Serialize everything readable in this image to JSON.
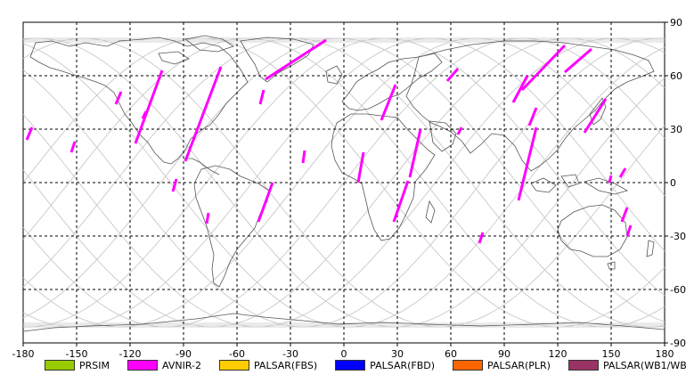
{
  "map": {
    "x_axis": {
      "range": [
        -180,
        180
      ],
      "ticks": [
        -180,
        -150,
        -120,
        -90,
        -60,
        -30,
        0,
        30,
        60,
        90,
        120,
        150,
        180
      ],
      "labels": [
        "-180",
        "-150",
        "-120",
        "-90",
        "-60",
        "-30",
        "0",
        "30",
        "60",
        "90",
        "120",
        "150",
        "180"
      ]
    },
    "y_axis": {
      "range": [
        -90,
        90
      ],
      "ticks": [
        90,
        60,
        30,
        0,
        -30,
        -60,
        -90
      ],
      "labels": [
        "90",
        "60",
        "30",
        "0",
        "-30",
        "-60",
        "-90"
      ]
    },
    "grid": "dashed",
    "orbit_color": "#c8c8c8",
    "coastline_color": "#555555"
  },
  "legend": [
    {
      "label": "PRSIM",
      "color": "#99cc00"
    },
    {
      "label": "AVNIR-2",
      "color": "#ff00ff"
    },
    {
      "label": "PALSAR(FBS)",
      "color": "#ffcc00"
    },
    {
      "label": "PALSAR(FBD)",
      "color": "#0000ff"
    },
    {
      "label": "PALSAR(PLR)",
      "color": "#ff6600"
    },
    {
      "label": "PALSAR(WB1/WB2)",
      "color": "#993366"
    }
  ],
  "avnir2_strips": [
    [
      [
        -178,
        24
      ],
      [
        -175,
        31
      ]
    ],
    [
      [
        -153,
        17
      ],
      [
        -151,
        23
      ]
    ],
    [
      [
        -128,
        44
      ],
      [
        -125,
        51
      ]
    ],
    [
      [
        -113,
        36
      ],
      [
        -111,
        40
      ]
    ],
    [
      [
        -117,
        22
      ],
      [
        -102,
        63
      ]
    ],
    [
      [
        -89,
        12
      ],
      [
        -69,
        65
      ]
    ],
    [
      [
        -47,
        44
      ],
      [
        -45,
        52
      ]
    ],
    [
      [
        -44,
        58
      ],
      [
        -10,
        80
      ]
    ],
    [
      [
        -96,
        -5
      ],
      [
        -94,
        2
      ]
    ],
    [
      [
        -77,
        -23
      ],
      [
        -76,
        -17
      ]
    ],
    [
      [
        -48,
        -22
      ],
      [
        -40,
        0
      ]
    ],
    [
      [
        -23,
        11
      ],
      [
        -22,
        18
      ]
    ],
    [
      [
        8,
        0
      ],
      [
        11,
        17
      ]
    ],
    [
      [
        21,
        35
      ],
      [
        29,
        55
      ]
    ],
    [
      [
        28,
        -22
      ],
      [
        36,
        1
      ]
    ],
    [
      [
        37,
        3
      ],
      [
        43,
        30
      ]
    ],
    [
      [
        58,
        57
      ],
      [
        64,
        64
      ]
    ],
    [
      [
        64,
        27
      ],
      [
        66,
        31
      ]
    ],
    [
      [
        76,
        -34
      ],
      [
        78,
        -28
      ]
    ],
    [
      [
        95,
        45
      ],
      [
        103,
        60
      ]
    ],
    [
      [
        104,
        32
      ],
      [
        108,
        42
      ]
    ],
    [
      [
        98,
        -10
      ],
      [
        108,
        31
      ]
    ],
    [
      [
        100,
        52
      ],
      [
        124,
        77
      ]
    ],
    [
      [
        124,
        62
      ],
      [
        139,
        75
      ]
    ],
    [
      [
        135,
        28
      ],
      [
        147,
        47
      ]
    ],
    [
      [
        149,
        0
      ],
      [
        150,
        4
      ]
    ],
    [
      [
        155,
        3
      ],
      [
        158,
        8
      ]
    ],
    [
      [
        156,
        -22
      ],
      [
        159,
        -14
      ]
    ],
    [
      [
        159,
        -30
      ],
      [
        161,
        -24
      ]
    ]
  ]
}
